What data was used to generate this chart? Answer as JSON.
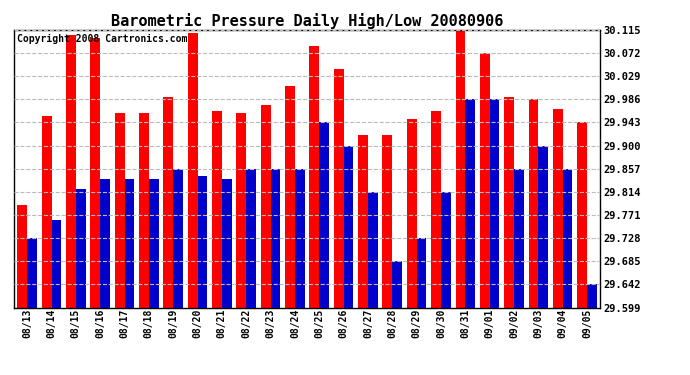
{
  "title": "Barometric Pressure Daily High/Low 20080906",
  "copyright": "Copyright 2008 Cartronics.com",
  "dates": [
    "08/13",
    "08/14",
    "08/15",
    "08/16",
    "08/17",
    "08/18",
    "08/19",
    "08/20",
    "08/21",
    "08/22",
    "08/23",
    "08/24",
    "08/25",
    "08/26",
    "08/27",
    "08/28",
    "08/29",
    "08/30",
    "08/31",
    "09/01",
    "09/02",
    "09/03",
    "09/04",
    "09/05"
  ],
  "highs": [
    29.79,
    29.955,
    30.105,
    30.1,
    29.96,
    29.96,
    29.99,
    30.11,
    29.965,
    29.96,
    29.975,
    30.01,
    30.085,
    30.043,
    29.92,
    29.92,
    29.95,
    29.965,
    30.115,
    30.072,
    29.99,
    29.986,
    29.968,
    29.943
  ],
  "lows": [
    29.728,
    29.762,
    29.82,
    29.838,
    29.838,
    29.838,
    29.857,
    29.843,
    29.838,
    29.857,
    29.857,
    29.857,
    29.943,
    29.9,
    29.814,
    29.685,
    29.728,
    29.814,
    29.986,
    29.986,
    29.857,
    29.9,
    29.857,
    29.642
  ],
  "yticks": [
    29.599,
    29.642,
    29.685,
    29.728,
    29.771,
    29.814,
    29.857,
    29.9,
    29.943,
    29.986,
    30.029,
    30.072,
    30.115
  ],
  "ymin": 29.599,
  "ymax": 30.115,
  "bar_color_high": "#FF0000",
  "bar_color_low": "#0000CC",
  "bg_color": "#FFFFFF",
  "grid_color": "#BBBBBB",
  "title_fontsize": 11,
  "copyright_fontsize": 7,
  "figwidth": 6.9,
  "figheight": 3.75,
  "dpi": 100
}
